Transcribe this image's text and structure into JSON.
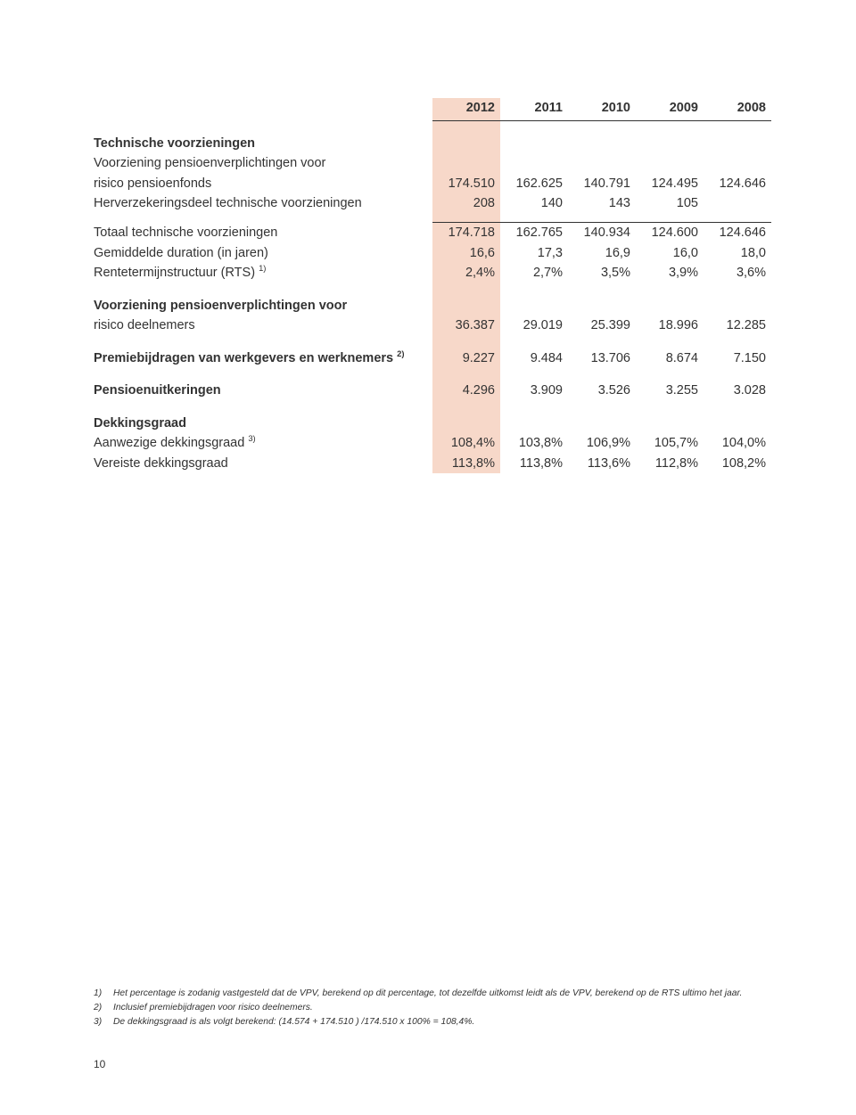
{
  "colors": {
    "highlight": "#f7d8c9",
    "text": "#333333",
    "rule": "#333333",
    "background": "#ffffff"
  },
  "table": {
    "headers": [
      "2012",
      "2011",
      "2010",
      "2009",
      "2008"
    ],
    "sections": [
      {
        "title": "Technische voorzieningen",
        "rows": [
          {
            "label": "Voorziening pensioenverplichtingen voor",
            "values": [
              "",
              "",
              "",
              "",
              ""
            ]
          },
          {
            "label": "risico pensioenfonds",
            "values": [
              "174.510",
              "162.625",
              "140.791",
              "124.495",
              "124.646"
            ]
          },
          {
            "label": "Herverzekeringsdeel technische voorzieningen",
            "values": [
              "208",
              "140",
              "143",
              "105",
              ""
            ]
          }
        ],
        "totalRow": {
          "label": "Totaal technische voorzieningen",
          "values": [
            "174.718",
            "162.765",
            "140.934",
            "124.600",
            "124.646"
          ]
        },
        "postTotalRows": [
          {
            "label": "Gemiddelde duration (in jaren)",
            "values": [
              "16,6",
              "17,3",
              "16,9",
              "16,0",
              "18,0"
            ]
          },
          {
            "label": "Rentetermijnstructuur (RTS)",
            "sup": "1)",
            "values": [
              "2,4%",
              "2,7%",
              "3,5%",
              "3,9%",
              "3,6%"
            ]
          }
        ]
      },
      {
        "title": "Voorziening pensioenverplichtingen voor",
        "titleIsRow": true,
        "rows": [
          {
            "label": "risico deelnemers",
            "values": [
              "36.387",
              "29.019",
              "25.399",
              "18.996",
              "12.285"
            ]
          }
        ]
      },
      {
        "rows": [
          {
            "label": "Premiebijdragen van werkgevers en werknemers",
            "sup": "2)",
            "values": [
              "9.227",
              "9.484",
              "13.706",
              "8.674",
              "7.150"
            ],
            "bold": true
          }
        ]
      },
      {
        "rows": [
          {
            "label": "Pensioenuitkeringen",
            "values": [
              "4.296",
              "3.909",
              "3.526",
              "3.255",
              "3.028"
            ],
            "bold": true
          }
        ]
      },
      {
        "title": "Dekkingsgraad",
        "rows": [
          {
            "label": "Aanwezige dekkingsgraad",
            "sup": "3)",
            "values": [
              "108,4%",
              "103,8%",
              "106,9%",
              "105,7%",
              "104,0%"
            ]
          },
          {
            "label": "Vereiste dekkingsgraad",
            "values": [
              "113,8%",
              "113,8%",
              "113,6%",
              "112,8%",
              "108,2%"
            ]
          }
        ]
      }
    ]
  },
  "footnotes": [
    {
      "num": "1)",
      "text": "Het percentage is zodanig vastgesteld dat de VPV, berekend op dit percentage, tot dezelfde uitkomst leidt als de VPV, berekend op de RTS ultimo het jaar."
    },
    {
      "num": "2)",
      "text": "Inclusief premiebijdragen voor risico deelnemers."
    },
    {
      "num": "3)",
      "text": "De dekkingsgraad is als volgt berekend: (14.574 + 174.510 ) /174.510 x 100% = 108,4%."
    }
  ],
  "pageNumber": "10"
}
